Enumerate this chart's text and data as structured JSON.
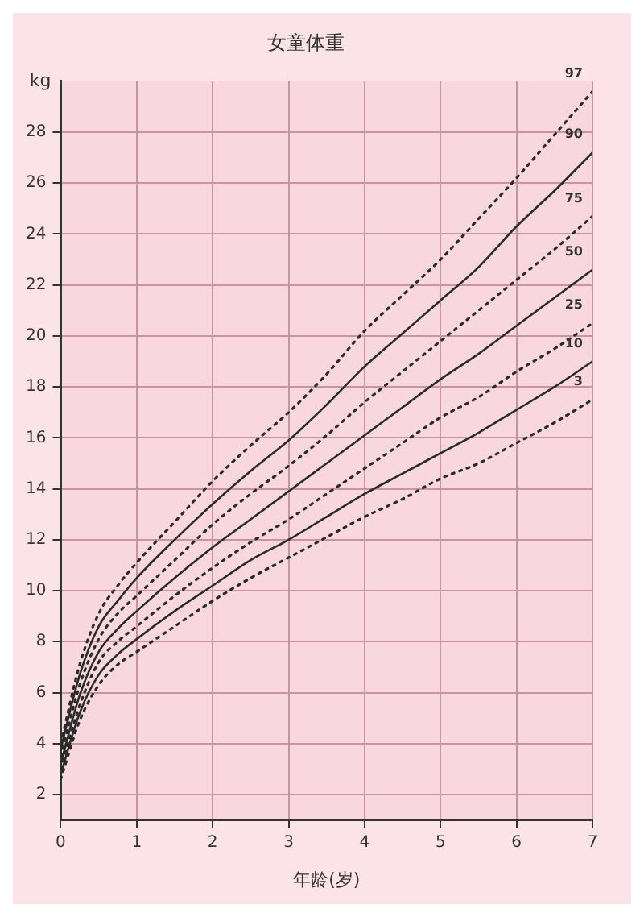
{
  "chart_data": {
    "type": "line",
    "title": "女童体重",
    "xlabel": "年龄(岁)",
    "ylabel": "kg",
    "x": [
      0,
      0.25,
      0.5,
      0.75,
      1,
      1.5,
      2,
      2.5,
      3,
      3.5,
      4,
      4.5,
      5,
      5.5,
      6,
      6.5,
      7
    ],
    "series": [
      {
        "name": "97",
        "color": "#2a2a2a",
        "line_style": "dotted",
        "values": [
          4.0,
          7.1,
          9.1,
          10.2,
          11.1,
          12.7,
          14.3,
          15.7,
          17.0,
          18.5,
          20.2,
          21.6,
          23.0,
          24.6,
          26.2,
          27.9,
          29.6
        ]
      },
      {
        "name": "90",
        "color": "#2a2a2a",
        "line_style": "solid",
        "values": [
          3.8,
          6.7,
          8.6,
          9.6,
          10.5,
          12.0,
          13.4,
          14.7,
          15.9,
          17.3,
          18.8,
          20.1,
          21.4,
          22.7,
          24.3,
          25.7,
          27.2
        ]
      },
      {
        "name": "75",
        "color": "#2a2a2a",
        "line_style": "dotted",
        "values": [
          3.5,
          6.3,
          8.1,
          9.1,
          9.8,
          11.2,
          12.6,
          13.8,
          14.9,
          16.1,
          17.4,
          18.6,
          19.8,
          21.0,
          22.2,
          23.4,
          24.7
        ]
      },
      {
        "name": "50",
        "color": "#2a2a2a",
        "line_style": "solid",
        "values": [
          3.2,
          5.9,
          7.6,
          8.5,
          9.2,
          10.5,
          11.7,
          12.8,
          13.9,
          15.0,
          16.1,
          17.2,
          18.3,
          19.3,
          20.4,
          21.5,
          22.6
        ]
      },
      {
        "name": "25",
        "color": "#2a2a2a",
        "line_style": "dotted",
        "values": [
          3.0,
          5.5,
          7.2,
          8.0,
          8.6,
          9.8,
          10.9,
          11.9,
          12.8,
          13.8,
          14.8,
          15.8,
          16.8,
          17.6,
          18.6,
          19.5,
          20.5
        ]
      },
      {
        "name": "10",
        "color": "#2a2a2a",
        "line_style": "solid",
        "values": [
          2.8,
          5.2,
          6.7,
          7.5,
          8.1,
          9.2,
          10.2,
          11.2,
          12.0,
          12.9,
          13.8,
          14.6,
          15.4,
          16.2,
          17.1,
          18.0,
          19.0
        ]
      },
      {
        "name": "3",
        "color": "#2a2a2a",
        "line_style": "dotted",
        "values": [
          2.6,
          4.9,
          6.3,
          7.1,
          7.6,
          8.6,
          9.6,
          10.5,
          11.3,
          12.1,
          12.9,
          13.6,
          14.4,
          15.0,
          15.8,
          16.6,
          17.5
        ]
      }
    ],
    "xlim": [
      0,
      7
    ],
    "xticks": [
      0,
      1,
      2,
      3,
      4,
      5,
      6,
      7
    ],
    "ylim": [
      1,
      30
    ],
    "yticks": [
      2,
      4,
      6,
      8,
      10,
      12,
      14,
      16,
      18,
      20,
      22,
      24,
      26,
      28
    ],
    "grid": true,
    "legend": false,
    "marker": "none"
  }
}
